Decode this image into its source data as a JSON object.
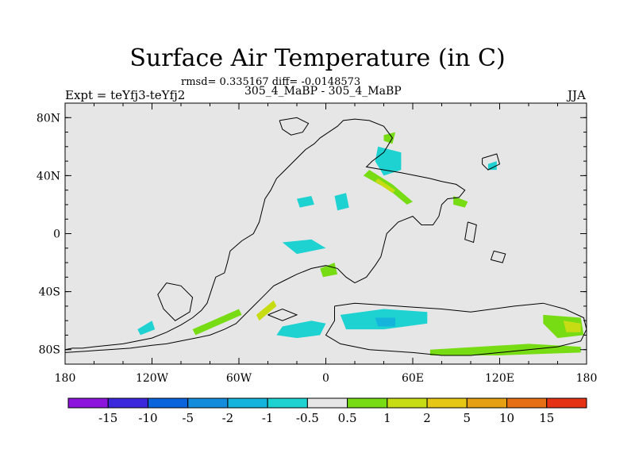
{
  "chart_data": {
    "type": "heatmap",
    "title": "Surface Air Temperature (in C)",
    "stats_text": "rmsd= 0.335167 diff= -0.0148573",
    "subtitle": "305_4_MaBP - 305_4_MaBP",
    "left_label": "Expt = teYfj3-teYfj2",
    "right_label": "JJA",
    "xlim": [
      -180,
      180
    ],
    "ylim": [
      -90,
      90
    ],
    "x_ticks": [
      {
        "value": -180,
        "label": "180"
      },
      {
        "value": -120,
        "label": "120W"
      },
      {
        "value": -60,
        "label": "60W"
      },
      {
        "value": 0,
        "label": "0"
      },
      {
        "value": 60,
        "label": "60E"
      },
      {
        "value": 120,
        "label": "120E"
      },
      {
        "value": 180,
        "label": "180"
      }
    ],
    "y_ticks": [
      {
        "value": 80,
        "label": "80N"
      },
      {
        "value": 40,
        "label": "40N"
      },
      {
        "value": 0,
        "label": "0"
      },
      {
        "value": -40,
        "label": "40S"
      },
      {
        "value": -80,
        "label": "80S"
      }
    ],
    "background_color": "#e6e6e6",
    "colorbar": {
      "colors": [
        "#8c14dc",
        "#3c28dc",
        "#0a64dc",
        "#148cdc",
        "#14b4dc",
        "#1ed2d2",
        "#e6e6e6",
        "#78dc14",
        "#c8dc14",
        "#e6c814",
        "#e6a014",
        "#e66e14",
        "#e63214"
      ],
      "labels": [
        "-15",
        "-10",
        "-5",
        "-2",
        "-1",
        "-0.5",
        "0.5",
        "1",
        "2",
        "5",
        "10",
        "15"
      ]
    },
    "coastlines": [
      [
        [
          -180,
          -80
        ],
        [
          -175,
          -79
        ],
        [
          -168,
          -79
        ],
        [
          -160,
          -78
        ],
        [
          -150,
          -77
        ],
        [
          -140,
          -76
        ],
        [
          -130,
          -74
        ],
        [
          -120,
          -72
        ],
        [
          -110,
          -68
        ],
        [
          -100,
          -63
        ],
        [
          -92,
          -58
        ],
        [
          -86,
          -53
        ],
        [
          -82,
          -48
        ],
        [
          -80,
          -42
        ],
        [
          -78,
          -36
        ],
        [
          -76,
          -30
        ],
        [
          -70,
          -27
        ],
        [
          -68,
          -20
        ],
        [
          -66,
          -12
        ],
        [
          -58,
          -5
        ],
        [
          -50,
          0
        ],
        [
          -46,
          8
        ],
        [
          -44,
          16
        ],
        [
          -42,
          24
        ],
        [
          -38,
          30
        ],
        [
          -34,
          38
        ],
        [
          -28,
          44
        ],
        [
          -20,
          52
        ],
        [
          -14,
          58
        ],
        [
          -8,
          62
        ],
        [
          -4,
          66
        ],
        [
          2,
          70
        ],
        [
          8,
          74
        ],
        [
          12,
          78
        ],
        [
          20,
          79
        ],
        [
          30,
          78
        ],
        [
          40,
          74
        ],
        [
          46,
          66
        ],
        [
          40,
          56
        ],
        [
          32,
          50
        ],
        [
          28,
          46
        ],
        [
          40,
          44
        ],
        [
          52,
          42
        ],
        [
          62,
          40
        ],
        [
          72,
          38
        ],
        [
          80,
          36
        ],
        [
          90,
          34
        ],
        [
          96,
          30
        ],
        [
          92,
          25
        ],
        [
          84,
          24
        ],
        [
          80,
          20
        ],
        [
          78,
          12
        ],
        [
          74,
          6
        ],
        [
          66,
          6
        ],
        [
          60,
          12
        ],
        [
          50,
          8
        ],
        [
          42,
          0
        ],
        [
          40,
          -8
        ],
        [
          38,
          -16
        ],
        [
          34,
          -22
        ],
        [
          28,
          -30
        ],
        [
          20,
          -34
        ],
        [
          14,
          -30
        ],
        [
          8,
          -24
        ],
        [
          0,
          -22
        ],
        [
          -10,
          -24
        ],
        [
          -20,
          -28
        ],
        [
          -28,
          -32
        ],
        [
          -36,
          -36
        ],
        [
          -42,
          -42
        ],
        [
          -50,
          -50
        ],
        [
          -56,
          -56
        ],
        [
          -62,
          -62
        ],
        [
          -70,
          -66
        ],
        [
          -80,
          -70
        ],
        [
          -90,
          -72
        ],
        [
          -100,
          -74
        ],
        [
          -110,
          -76
        ],
        [
          -120,
          -77
        ],
        [
          -135,
          -79
        ],
        [
          -150,
          -80
        ],
        [
          -165,
          -81
        ],
        [
          -180,
          -82
        ]
      ],
      [
        [
          -32,
          78
        ],
        [
          -20,
          80
        ],
        [
          -12,
          76
        ],
        [
          -16,
          70
        ],
        [
          -24,
          68
        ],
        [
          -30,
          72
        ],
        [
          -32,
          78
        ]
      ],
      [
        [
          108,
          52
        ],
        [
          118,
          55
        ],
        [
          120,
          48
        ],
        [
          112,
          44
        ],
        [
          108,
          48
        ],
        [
          108,
          52
        ]
      ],
      [
        [
          98,
          8
        ],
        [
          104,
          6
        ],
        [
          102,
          -6
        ],
        [
          96,
          -4
        ],
        [
          98,
          8
        ]
      ],
      [
        [
          116,
          -12
        ],
        [
          124,
          -14
        ],
        [
          122,
          -20
        ],
        [
          114,
          -18
        ],
        [
          116,
          -12
        ]
      ],
      [
        [
          -40,
          -56
        ],
        [
          -30,
          -52
        ],
        [
          -20,
          -56
        ],
        [
          -30,
          -60
        ],
        [
          -40,
          -56
        ]
      ],
      [
        [
          6,
          -50
        ],
        [
          20,
          -48
        ],
        [
          50,
          -50
        ],
        [
          80,
          -52
        ],
        [
          100,
          -54
        ],
        [
          130,
          -50
        ],
        [
          150,
          -48
        ],
        [
          165,
          -52
        ],
        [
          178,
          -58
        ],
        [
          180,
          -66
        ],
        [
          176,
          -74
        ],
        [
          160,
          -78
        ],
        [
          140,
          -80
        ],
        [
          120,
          -82
        ],
        [
          100,
          -84
        ],
        [
          80,
          -84
        ],
        [
          60,
          -82
        ],
        [
          30,
          -80
        ],
        [
          10,
          -76
        ],
        [
          0,
          -70
        ],
        [
          6,
          -60
        ],
        [
          6,
          -50
        ]
      ],
      [
        [
          -110,
          -34
        ],
        [
          -100,
          -36
        ],
        [
          -92,
          -44
        ],
        [
          -94,
          -54
        ],
        [
          -104,
          -60
        ],
        [
          -112,
          -52
        ],
        [
          -116,
          -42
        ],
        [
          -110,
          -34
        ]
      ]
    ],
    "filled_regions": [
      {
        "cls": 5,
        "points": [
          [
            -30,
            -64
          ],
          [
            -10,
            -60
          ],
          [
            0,
            -62
          ],
          [
            -4,
            -70
          ],
          [
            -20,
            -72
          ],
          [
            -34,
            -70
          ],
          [
            -30,
            -64
          ]
        ]
      },
      {
        "cls": 5,
        "points": [
          [
            10,
            -56
          ],
          [
            40,
            -52
          ],
          [
            70,
            -54
          ],
          [
            70,
            -62
          ],
          [
            40,
            -66
          ],
          [
            14,
            -66
          ],
          [
            10,
            -56
          ]
        ]
      },
      {
        "cls": 4,
        "points": [
          [
            34,
            -58
          ],
          [
            48,
            -58
          ],
          [
            48,
            -64
          ],
          [
            36,
            -64
          ],
          [
            34,
            -58
          ]
        ]
      },
      {
        "cls": 7,
        "points": [
          [
            72,
            -80
          ],
          [
            140,
            -76
          ],
          [
            176,
            -78
          ],
          [
            176,
            -82
          ],
          [
            120,
            -84
          ],
          [
            72,
            -84
          ],
          [
            72,
            -80
          ]
        ]
      },
      {
        "cls": 7,
        "points": [
          [
            -92,
            -66
          ],
          [
            -60,
            -52
          ],
          [
            -58,
            -56
          ],
          [
            -90,
            -70
          ],
          [
            -92,
            -66
          ]
        ]
      },
      {
        "cls": 8,
        "points": [
          [
            -48,
            -56
          ],
          [
            -36,
            -46
          ],
          [
            -34,
            -50
          ],
          [
            -46,
            -60
          ],
          [
            -48,
            -56
          ]
        ]
      },
      {
        "cls": 7,
        "points": [
          [
            150,
            -56
          ],
          [
            176,
            -58
          ],
          [
            178,
            -70
          ],
          [
            160,
            -72
          ],
          [
            150,
            -62
          ],
          [
            150,
            -56
          ]
        ]
      },
      {
        "cls": 8,
        "points": [
          [
            164,
            -60
          ],
          [
            176,
            -62
          ],
          [
            176,
            -68
          ],
          [
            166,
            -68
          ],
          [
            164,
            -60
          ]
        ]
      },
      {
        "cls": 7,
        "points": [
          [
            26,
            40
          ],
          [
            44,
            30
          ],
          [
            56,
            20
          ],
          [
            60,
            22
          ],
          [
            46,
            34
          ],
          [
            30,
            44
          ],
          [
            26,
            40
          ]
        ]
      },
      {
        "cls": 8,
        "points": [
          [
            34,
            36
          ],
          [
            46,
            28
          ],
          [
            48,
            30
          ],
          [
            36,
            38
          ],
          [
            34,
            36
          ]
        ]
      },
      {
        "cls": 5,
        "points": [
          [
            36,
            60
          ],
          [
            52,
            56
          ],
          [
            52,
            44
          ],
          [
            40,
            40
          ],
          [
            34,
            50
          ],
          [
            36,
            60
          ]
        ]
      },
      {
        "cls": 7,
        "points": [
          [
            40,
            68
          ],
          [
            48,
            70
          ],
          [
            46,
            62
          ],
          [
            40,
            64
          ],
          [
            40,
            68
          ]
        ]
      },
      {
        "cls": 5,
        "points": [
          [
            6,
            26
          ],
          [
            14,
            28
          ],
          [
            16,
            18
          ],
          [
            8,
            16
          ],
          [
            6,
            26
          ]
        ]
      },
      {
        "cls": 5,
        "points": [
          [
            -30,
            -6
          ],
          [
            -10,
            -4
          ],
          [
            0,
            -10
          ],
          [
            -20,
            -14
          ],
          [
            -30,
            -6
          ]
        ]
      },
      {
        "cls": 7,
        "points": [
          [
            -4,
            -24
          ],
          [
            6,
            -20
          ],
          [
            8,
            -28
          ],
          [
            -2,
            -30
          ],
          [
            -4,
            -24
          ]
        ]
      },
      {
        "cls": 5,
        "points": [
          [
            -130,
            -66
          ],
          [
            -120,
            -60
          ],
          [
            -118,
            -66
          ],
          [
            -128,
            -70
          ],
          [
            -130,
            -66
          ]
        ]
      },
      {
        "cls": 5,
        "points": [
          [
            -20,
            24
          ],
          [
            -10,
            26
          ],
          [
            -8,
            20
          ],
          [
            -18,
            18
          ],
          [
            -20,
            24
          ]
        ]
      },
      {
        "cls": 7,
        "points": [
          [
            88,
            26
          ],
          [
            98,
            22
          ],
          [
            96,
            18
          ],
          [
            88,
            20
          ],
          [
            88,
            26
          ]
        ]
      },
      {
        "cls": 5,
        "points": [
          [
            112,
            48
          ],
          [
            118,
            50
          ],
          [
            118,
            44
          ],
          [
            112,
            44
          ],
          [
            112,
            48
          ]
        ]
      }
    ]
  }
}
